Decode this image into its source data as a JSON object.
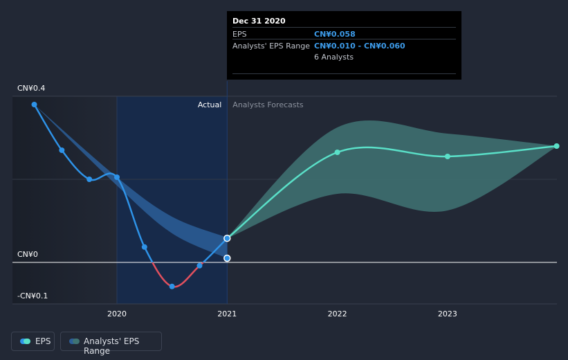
{
  "tooltip": {
    "date": "Dec 31 2020",
    "eps_label": "EPS",
    "eps_value": "CN¥0.058",
    "range_label": "Analysts' EPS Range",
    "range_value": "CN¥0.010 - CN¥0.060",
    "analysts": "6 Analysts"
  },
  "legend": {
    "eps": "EPS",
    "range": "Analysts' EPS Range"
  },
  "colors": {
    "background": "#222835",
    "actual_band": "#172a4a",
    "eps_line": "#2e93e8",
    "negative_line": "#e0505e",
    "forecast_line": "#5ae0c8",
    "forecast_range": "#3f7373",
    "actual_range": "#2c5e98"
  },
  "chart_data": {
    "type": "line",
    "region_labels": {
      "actual": "Actual",
      "forecast": "Analysts Forecasts"
    },
    "x_ticks": [
      "2020",
      "2021",
      "2022",
      "2023"
    ],
    "y_ticks": [
      {
        "label": "CN¥0.4",
        "value": 0.4
      },
      {
        "label": "CN¥0",
        "value": 0
      },
      {
        "label": "-CN¥0.1",
        "value": -0.1
      }
    ],
    "ylim": [
      -0.1,
      0.4
    ],
    "xlim": [
      2019.13,
      2023.99
    ],
    "actual_end": 2021.0,
    "eps_actual": [
      {
        "x": 2019.25,
        "y": 0.38
      },
      {
        "x": 2019.5,
        "y": 0.27
      },
      {
        "x": 2019.75,
        "y": 0.2
      },
      {
        "x": 2020.0,
        "y": 0.205
      },
      {
        "x": 2020.25,
        "y": 0.037
      },
      {
        "x": 2020.5,
        "y": -0.058
      },
      {
        "x": 2020.75,
        "y": -0.008
      },
      {
        "x": 2021.0,
        "y": 0.058
      }
    ],
    "eps_forecast": [
      {
        "x": 2021.0,
        "y": 0.058
      },
      {
        "x": 2022.0,
        "y": 0.265
      },
      {
        "x": 2023.0,
        "y": 0.255
      },
      {
        "x": 2024.0,
        "y": 0.28
      }
    ],
    "actual_range": {
      "x": [
        2019.25,
        2020.0,
        2020.5,
        2021.0
      ],
      "high": [
        0.38,
        0.205,
        0.11,
        0.06
      ],
      "low": [
        0.38,
        0.185,
        0.07,
        0.01
      ]
    },
    "forecast_range": {
      "x": [
        2021.0,
        2022.0,
        2023.0,
        2024.0
      ],
      "high": [
        0.06,
        0.325,
        0.31,
        0.28
      ],
      "low": [
        0.058,
        0.165,
        0.125,
        0.28
      ]
    },
    "highlight_point": {
      "x": 2021.0,
      "y": 0.01
    }
  }
}
